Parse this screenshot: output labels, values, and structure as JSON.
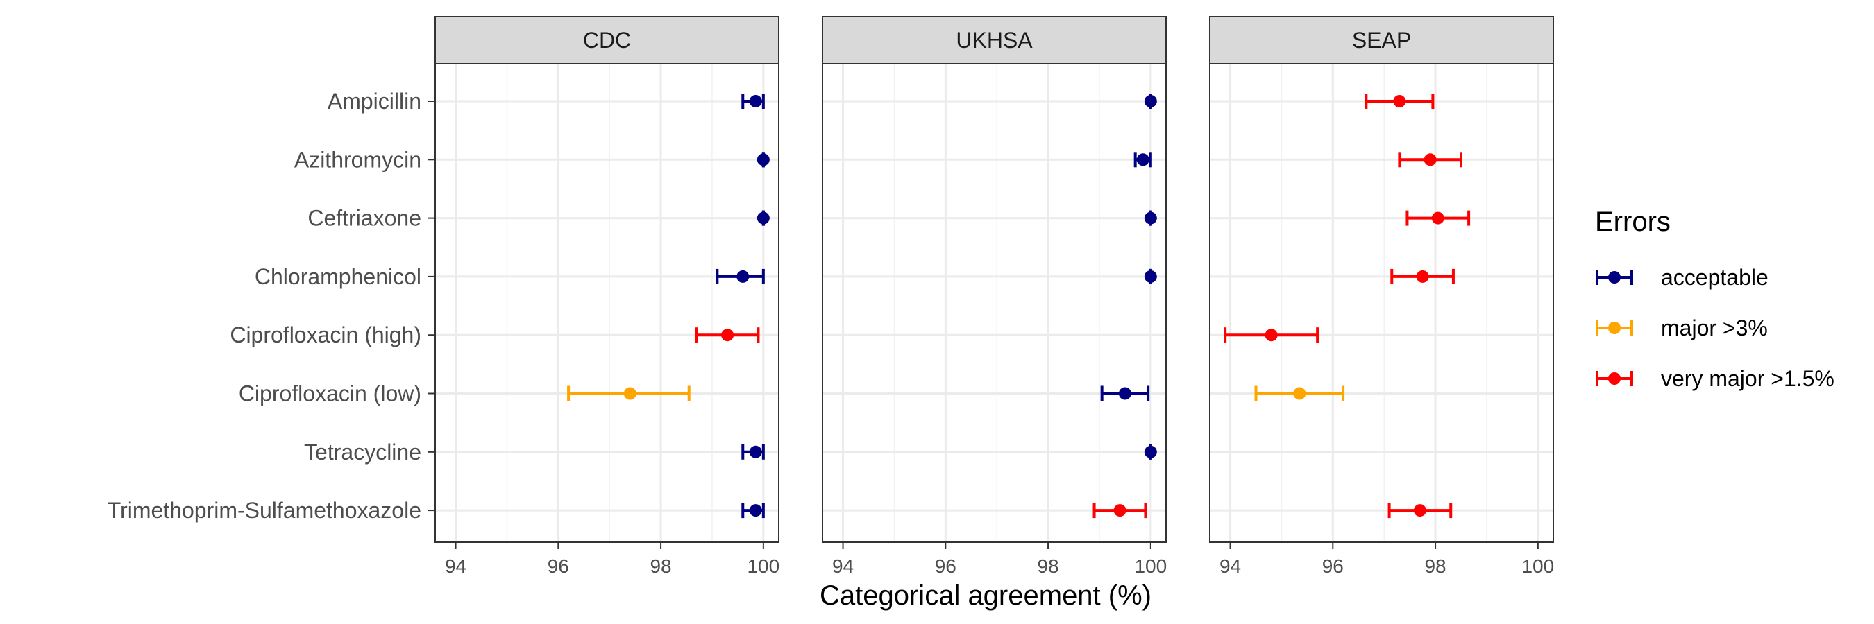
{
  "chart_data": {
    "type": "scatter",
    "subtype": "point-range",
    "xlabel": "Categorical agreement (%)",
    "xlim": [
      93.6,
      100.3
    ],
    "xticks": [
      94,
      96,
      98,
      100
    ],
    "grid": true,
    "legend_position": "right",
    "facets": [
      "CDC",
      "UKHSA",
      "SEAP"
    ],
    "categories": [
      "Ampicillin",
      "Azithromycin",
      "Ceftriaxone",
      "Chloramphenicol",
      "Ciprofloxacin (high)",
      "Ciprofloxacin (low)",
      "Tetracycline",
      "Trimethoprim-Sulfamethoxazole"
    ],
    "legend": {
      "title": "Errors",
      "items": [
        {
          "key": "acceptable",
          "label": "acceptable",
          "color": "#000080"
        },
        {
          "key": "major",
          "label": "major >3%",
          "color": "#FFA500"
        },
        {
          "key": "very_major",
          "label": "very major >1.5%",
          "color": "#FF0000"
        }
      ]
    },
    "points": [
      {
        "facet": "CDC",
        "category": "Ampicillin",
        "value": 99.85,
        "low": 99.6,
        "high": 100.0,
        "error": "acceptable"
      },
      {
        "facet": "CDC",
        "category": "Azithromycin",
        "value": 100.0,
        "low": 100.0,
        "high": 100.0,
        "error": "acceptable"
      },
      {
        "facet": "CDC",
        "category": "Ceftriaxone",
        "value": 100.0,
        "low": 100.0,
        "high": 100.0,
        "error": "acceptable"
      },
      {
        "facet": "CDC",
        "category": "Chloramphenicol",
        "value": 99.6,
        "low": 99.1,
        "high": 100.0,
        "error": "acceptable"
      },
      {
        "facet": "CDC",
        "category": "Ciprofloxacin (high)",
        "value": 99.3,
        "low": 98.7,
        "high": 99.9,
        "error": "very_major"
      },
      {
        "facet": "CDC",
        "category": "Ciprofloxacin (low)",
        "value": 97.4,
        "low": 96.2,
        "high": 98.55,
        "error": "major"
      },
      {
        "facet": "CDC",
        "category": "Tetracycline",
        "value": 99.85,
        "low": 99.6,
        "high": 100.0,
        "error": "acceptable"
      },
      {
        "facet": "CDC",
        "category": "Trimethoprim-Sulfamethoxazole",
        "value": 99.85,
        "low": 99.6,
        "high": 100.0,
        "error": "acceptable"
      },
      {
        "facet": "UKHSA",
        "category": "Ampicillin",
        "value": 100.0,
        "low": 100.0,
        "high": 100.0,
        "error": "acceptable"
      },
      {
        "facet": "UKHSA",
        "category": "Azithromycin",
        "value": 99.85,
        "low": 99.7,
        "high": 100.0,
        "error": "acceptable"
      },
      {
        "facet": "UKHSA",
        "category": "Ceftriaxone",
        "value": 100.0,
        "low": 100.0,
        "high": 100.0,
        "error": "acceptable"
      },
      {
        "facet": "UKHSA",
        "category": "Chloramphenicol",
        "value": 100.0,
        "low": 100.0,
        "high": 100.0,
        "error": "acceptable"
      },
      {
        "facet": "UKHSA",
        "category": "Ciprofloxacin (low)",
        "value": 99.5,
        "low": 99.05,
        "high": 99.95,
        "error": "acceptable"
      },
      {
        "facet": "UKHSA",
        "category": "Tetracycline",
        "value": 100.0,
        "low": 100.0,
        "high": 100.0,
        "error": "acceptable"
      },
      {
        "facet": "UKHSA",
        "category": "Trimethoprim-Sulfamethoxazole",
        "value": 99.4,
        "low": 98.9,
        "high": 99.9,
        "error": "very_major"
      },
      {
        "facet": "SEAP",
        "category": "Ampicillin",
        "value": 97.3,
        "low": 96.65,
        "high": 97.95,
        "error": "very_major"
      },
      {
        "facet": "SEAP",
        "category": "Azithromycin",
        "value": 97.9,
        "low": 97.3,
        "high": 98.5,
        "error": "very_major"
      },
      {
        "facet": "SEAP",
        "category": "Ceftriaxone",
        "value": 98.05,
        "low": 97.45,
        "high": 98.65,
        "error": "very_major"
      },
      {
        "facet": "SEAP",
        "category": "Chloramphenicol",
        "value": 97.75,
        "low": 97.15,
        "high": 98.35,
        "error": "very_major"
      },
      {
        "facet": "SEAP",
        "category": "Ciprofloxacin (high)",
        "value": 94.8,
        "low": 93.9,
        "high": 95.7,
        "error": "very_major"
      },
      {
        "facet": "SEAP",
        "category": "Ciprofloxacin (low)",
        "value": 95.35,
        "low": 94.5,
        "high": 96.2,
        "error": "major"
      },
      {
        "facet": "SEAP",
        "category": "Trimethoprim-Sulfamethoxazole",
        "value": 97.7,
        "low": 97.1,
        "high": 98.3,
        "error": "very_major"
      }
    ]
  }
}
